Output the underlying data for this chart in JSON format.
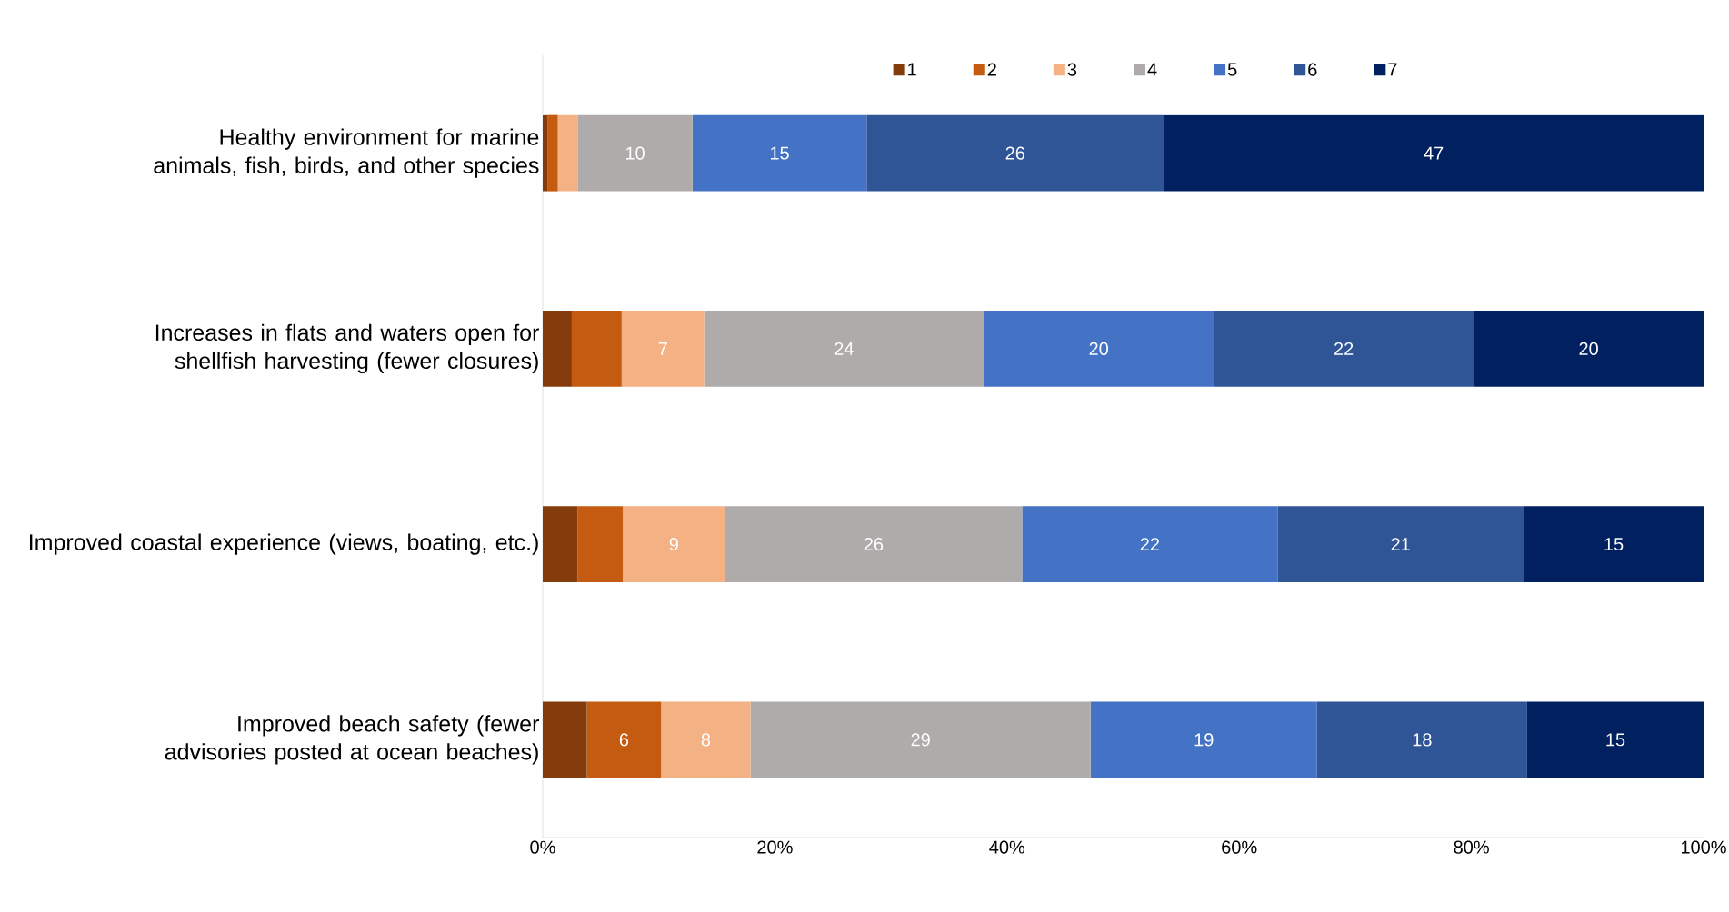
{
  "chart_data": {
    "type": "bar",
    "orientation": "horizontal",
    "stacked": true,
    "categories": [
      "Healthy environment for marine animals, fish, birds, and other species",
      "Increases in flats and waters open for shellfish harvesting (fewer closures)",
      "Improved coastal experience (views, boating, etc.)",
      "Improved beach safety (fewer advisories posted at ocean beaches)"
    ],
    "series": [
      {
        "name": "1",
        "color": "#843c0c",
        "values": [
          0.4,
          2.5,
          3.0,
          3.8
        ],
        "value_labels": [
          null,
          null,
          null,
          null
        ]
      },
      {
        "name": "2",
        "color": "#c55a11",
        "values": [
          0.9,
          4.3,
          3.9,
          6.4
        ],
        "value_labels": [
          null,
          null,
          null,
          "6"
        ]
      },
      {
        "name": "3",
        "color": "#f4b183",
        "values": [
          1.7,
          7.1,
          8.8,
          7.7
        ],
        "value_labels": [
          null,
          "7",
          "9",
          "8"
        ]
      },
      {
        "name": "4",
        "color": "#afabab",
        "values": [
          9.9,
          24.1,
          25.6,
          29.3
        ],
        "value_labels": [
          "10",
          "24",
          "26",
          "29"
        ]
      },
      {
        "name": "5",
        "color": "#4472c4",
        "values": [
          15.0,
          19.8,
          22.0,
          19.5
        ],
        "value_labels": [
          "15",
          "20",
          "22",
          "19"
        ]
      },
      {
        "name": "6",
        "color": "#2f5597",
        "values": [
          25.6,
          22.4,
          21.2,
          18.1
        ],
        "value_labels": [
          "26",
          "22",
          "21",
          "18"
        ]
      },
      {
        "name": "7",
        "color": "#002060",
        "values": [
          46.5,
          19.8,
          15.5,
          15.2
        ],
        "value_labels": [
          "47",
          "20",
          "15",
          "15"
        ]
      }
    ],
    "xlim": [
      0,
      100
    ],
    "xticks": [
      {
        "value": 0,
        "label": "0%"
      },
      {
        "value": 20,
        "label": "20%"
      },
      {
        "value": 40,
        "label": "40%"
      },
      {
        "value": 60,
        "label": "60%"
      },
      {
        "value": 80,
        "label": "80%"
      },
      {
        "value": 100,
        "label": "100%"
      }
    ],
    "legend": "top",
    "grid": false
  }
}
